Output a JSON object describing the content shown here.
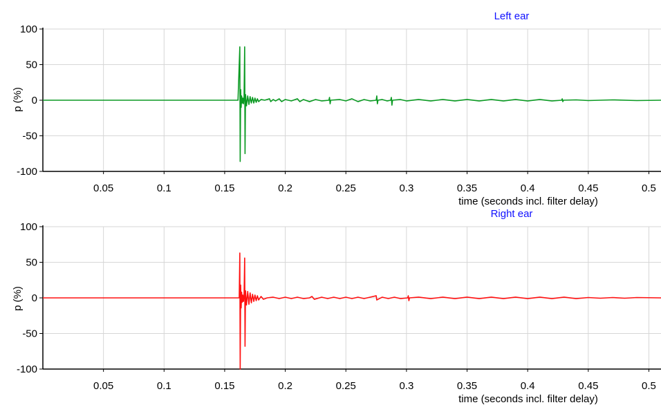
{
  "chart_data": [
    {
      "type": "line",
      "title": "Left ear",
      "xlabel": "time (seconds incl. filter delay)",
      "ylabel": "p (%)",
      "xlim": [
        0,
        0.51
      ],
      "ylim": [
        -100,
        100
      ],
      "x_ticks": [
        "0.05",
        "0.1",
        "0.15",
        "0.2",
        "0.25",
        "0.3",
        "0.35",
        "0.4",
        "0.45",
        "0.5"
      ],
      "y_ticks": [
        "100",
        "50",
        "0",
        "-50",
        "-100"
      ],
      "grid": true,
      "color": "#0a9a22",
      "series": [
        {
          "points": [
            [
              0.0,
              0
            ],
            [
              0.161,
              0
            ],
            [
              0.1625,
              75
            ],
            [
              0.1628,
              -86
            ],
            [
              0.1632,
              15
            ],
            [
              0.1636,
              -10
            ],
            [
              0.164,
              6
            ],
            [
              0.1645,
              -4
            ],
            [
              0.165,
              3
            ],
            [
              0.1655,
              -5
            ],
            [
              0.166,
              4
            ],
            [
              0.1665,
              75
            ],
            [
              0.1668,
              -75
            ],
            [
              0.1672,
              8
            ],
            [
              0.168,
              -8
            ],
            [
              0.169,
              6
            ],
            [
              0.17,
              -6
            ],
            [
              0.171,
              5
            ],
            [
              0.172,
              -4
            ],
            [
              0.173,
              4
            ],
            [
              0.174,
              -4
            ],
            [
              0.175,
              3
            ],
            [
              0.176,
              -3
            ],
            [
              0.177,
              2
            ],
            [
              0.178,
              -2
            ],
            [
              0.18,
              1
            ],
            [
              0.183,
              0
            ],
            [
              0.187,
              2
            ],
            [
              0.188,
              -2
            ],
            [
              0.19,
              1
            ],
            [
              0.192,
              -1
            ],
            [
              0.195,
              2
            ],
            [
              0.197,
              -2
            ],
            [
              0.2,
              1
            ],
            [
              0.205,
              -1
            ],
            [
              0.21,
              2
            ],
            [
              0.212,
              -2
            ],
            [
              0.215,
              1
            ],
            [
              0.22,
              -2
            ],
            [
              0.225,
              1
            ],
            [
              0.23,
              -1
            ],
            [
              0.236,
              0
            ],
            [
              0.2365,
              4
            ],
            [
              0.237,
              -5
            ],
            [
              0.2375,
              0
            ],
            [
              0.245,
              1
            ],
            [
              0.25,
              -1
            ],
            [
              0.255,
              2
            ],
            [
              0.26,
              -2
            ],
            [
              0.265,
              1
            ],
            [
              0.27,
              -1
            ],
            [
              0.275,
              0
            ],
            [
              0.2755,
              6
            ],
            [
              0.276,
              -5
            ],
            [
              0.2765,
              0
            ],
            [
              0.28,
              1
            ],
            [
              0.284,
              -1
            ],
            [
              0.287,
              0
            ],
            [
              0.2875,
              4
            ],
            [
              0.288,
              -7
            ],
            [
              0.2885,
              0
            ],
            [
              0.295,
              1
            ],
            [
              0.3,
              -1
            ],
            [
              0.31,
              1
            ],
            [
              0.32,
              -1
            ],
            [
              0.33,
              1
            ],
            [
              0.34,
              -1
            ],
            [
              0.35,
              1
            ],
            [
              0.36,
              -1
            ],
            [
              0.37,
              1
            ],
            [
              0.38,
              -1
            ],
            [
              0.39,
              1
            ],
            [
              0.4,
              -1
            ],
            [
              0.41,
              1
            ],
            [
              0.42,
              -1
            ],
            [
              0.428,
              0
            ],
            [
              0.4285,
              2
            ],
            [
              0.429,
              -2
            ],
            [
              0.4295,
              0
            ],
            [
              0.44,
              0.5
            ],
            [
              0.45,
              -0.5
            ],
            [
              0.47,
              0.5
            ],
            [
              0.49,
              -0.5
            ],
            [
              0.51,
              0
            ]
          ]
        }
      ]
    },
    {
      "type": "line",
      "title": "Right ear",
      "xlabel": "time (seconds incl. filter delay)",
      "ylabel": "p (%)",
      "xlim": [
        0,
        0.51
      ],
      "ylim": [
        -100,
        100
      ],
      "x_ticks": [
        "0.05",
        "0.1",
        "0.15",
        "0.2",
        "0.25",
        "0.3",
        "0.35",
        "0.4",
        "0.45",
        "0.5"
      ],
      "y_ticks": [
        "100",
        "50",
        "0",
        "-50",
        "-100"
      ],
      "grid": true,
      "color": "#ff1010",
      "series": [
        {
          "points": [
            [
              0.0,
              0
            ],
            [
              0.162,
              0
            ],
            [
              0.1625,
              63
            ],
            [
              0.1628,
              -100
            ],
            [
              0.1632,
              18
            ],
            [
              0.1636,
              -14
            ],
            [
              0.164,
              8
            ],
            [
              0.1645,
              -6
            ],
            [
              0.165,
              4
            ],
            [
              0.1655,
              -5
            ],
            [
              0.166,
              3
            ],
            [
              0.1665,
              56
            ],
            [
              0.1668,
              -68
            ],
            [
              0.1672,
              10
            ],
            [
              0.168,
              -10
            ],
            [
              0.169,
              9
            ],
            [
              0.17,
              -9
            ],
            [
              0.171,
              7
            ],
            [
              0.172,
              -7
            ],
            [
              0.173,
              5
            ],
            [
              0.174,
              -5
            ],
            [
              0.175,
              4
            ],
            [
              0.176,
              -4
            ],
            [
              0.177,
              3
            ],
            [
              0.178,
              -3
            ],
            [
              0.18,
              2
            ],
            [
              0.182,
              -2
            ],
            [
              0.185,
              0
            ],
            [
              0.19,
              1
            ],
            [
              0.195,
              -1
            ],
            [
              0.2,
              1
            ],
            [
              0.205,
              -1
            ],
            [
              0.21,
              1
            ],
            [
              0.215,
              -1
            ],
            [
              0.22,
              0
            ],
            [
              0.222,
              2
            ],
            [
              0.224,
              -2
            ],
            [
              0.23,
              1
            ],
            [
              0.235,
              -1
            ],
            [
              0.24,
              1
            ],
            [
              0.245,
              -1
            ],
            [
              0.25,
              1
            ],
            [
              0.255,
              -1
            ],
            [
              0.26,
              1
            ],
            [
              0.265,
              -1
            ],
            [
              0.27,
              1
            ],
            [
              0.275,
              3
            ],
            [
              0.2755,
              -3
            ],
            [
              0.28,
              1
            ],
            [
              0.285,
              -1
            ],
            [
              0.29,
              1
            ],
            [
              0.295,
              -1
            ],
            [
              0.301,
              0
            ],
            [
              0.3015,
              3
            ],
            [
              0.302,
              -4
            ],
            [
              0.3025,
              0
            ],
            [
              0.31,
              1
            ],
            [
              0.32,
              -1
            ],
            [
              0.33,
              1
            ],
            [
              0.34,
              -1
            ],
            [
              0.35,
              1
            ],
            [
              0.36,
              -1
            ],
            [
              0.37,
              1
            ],
            [
              0.38,
              -1
            ],
            [
              0.39,
              1
            ],
            [
              0.4,
              -1
            ],
            [
              0.41,
              1
            ],
            [
              0.42,
              -1
            ],
            [
              0.43,
              1
            ],
            [
              0.44,
              -1
            ],
            [
              0.45,
              0.5
            ],
            [
              0.46,
              -0.5
            ],
            [
              0.47,
              0.5
            ],
            [
              0.48,
              -0.5
            ],
            [
              0.49,
              0.5
            ],
            [
              0.51,
              0
            ]
          ]
        }
      ]
    }
  ]
}
